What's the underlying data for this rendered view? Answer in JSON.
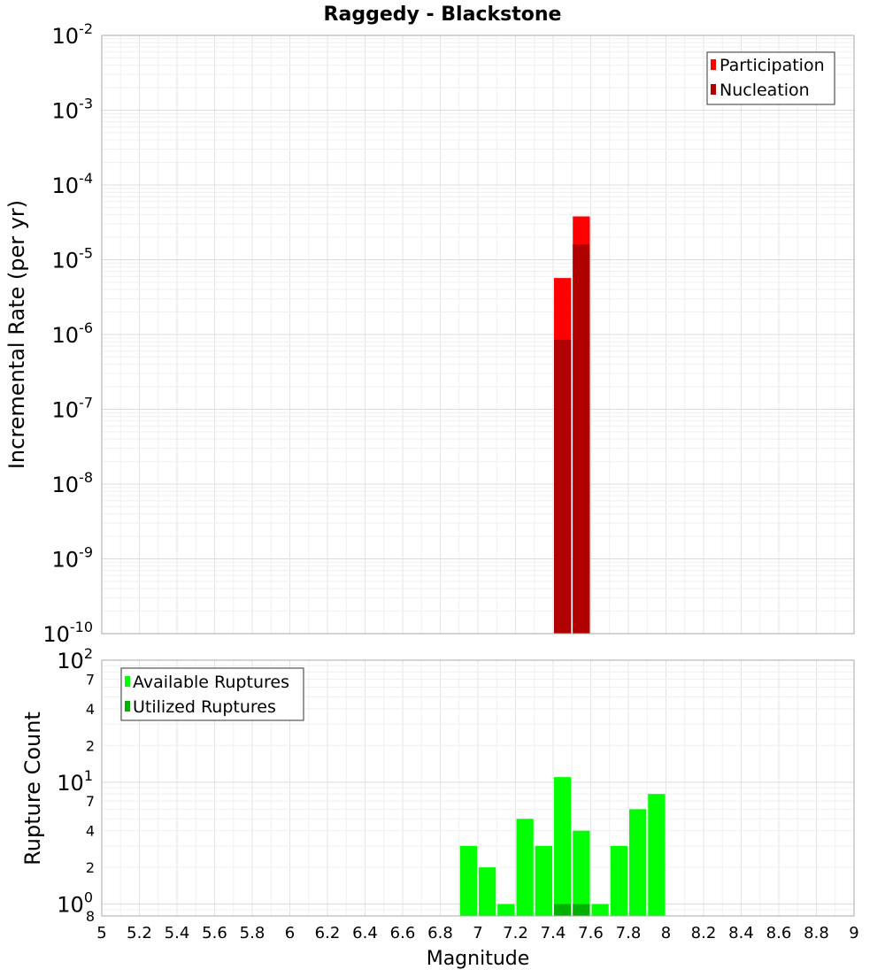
{
  "chart_data": [
    {
      "type": "bar",
      "title": "Raggedy - Blackstone",
      "ylabel": "Incremental Rate (per yr)",
      "xlabel": "",
      "xlim": [
        5,
        9
      ],
      "ylim": [
        1e-10,
        0.01
      ],
      "yscale": "log",
      "y_tick_exponents": [
        -2,
        -3,
        -4,
        -5,
        -6,
        -7,
        -8,
        -9,
        -10
      ],
      "grid": true,
      "legend_position": "top-right",
      "bar_width": 0.1,
      "series": [
        {
          "name": "Participation",
          "color": "#ff0000",
          "x": [
            7.45,
            7.55
          ],
          "values": [
            5.7e-06,
            3.8e-05
          ]
        },
        {
          "name": "Nucleation",
          "color": "#b00000",
          "x": [
            7.45,
            7.55
          ],
          "values": [
            8.5e-07,
            1.6e-05
          ]
        }
      ]
    },
    {
      "type": "bar",
      "title": "",
      "ylabel": "Rupture Count",
      "xlabel": "Magnitude",
      "xlim": [
        5,
        9
      ],
      "ylim": [
        0.8,
        100
      ],
      "yscale": "log",
      "y_major_ticks": [
        {
          "base": "10",
          "exp": "2",
          "value": 100
        },
        {
          "base": "10",
          "exp": "1",
          "value": 10
        },
        {
          "base": "10",
          "exp": "0",
          "value": 1
        }
      ],
      "y_minor_ticks": [
        {
          "label": "7",
          "value": 70
        },
        {
          "label": "4",
          "value": 40
        },
        {
          "label": "2",
          "value": 20
        },
        {
          "label": "7",
          "value": 7
        },
        {
          "label": "4",
          "value": 4
        },
        {
          "label": "2",
          "value": 2
        },
        {
          "label": "8",
          "value": 0.8
        }
      ],
      "x_ticks": [
        "5",
        "5.2",
        "5.4",
        "5.6",
        "5.8",
        "6",
        "6.2",
        "6.4",
        "6.6",
        "6.8",
        "7",
        "7.2",
        "7.4",
        "7.6",
        "7.8",
        "8",
        "8.2",
        "8.4",
        "8.6",
        "8.8",
        "9"
      ],
      "grid": true,
      "legend_position": "top-left",
      "bar_width": 0.1,
      "series": [
        {
          "name": "Available Ruptures",
          "color": "#00ff00",
          "x": [
            6.95,
            7.05,
            7.15,
            7.25,
            7.35,
            7.45,
            7.55,
            7.65,
            7.75,
            7.85,
            7.95
          ],
          "values": [
            3,
            2,
            1,
            5,
            3,
            11,
            4,
            1,
            3,
            6,
            8
          ]
        },
        {
          "name": "Utilized Ruptures",
          "color": "#00b000",
          "x": [
            7.45,
            7.55
          ],
          "values": [
            1,
            1
          ]
        }
      ]
    }
  ]
}
